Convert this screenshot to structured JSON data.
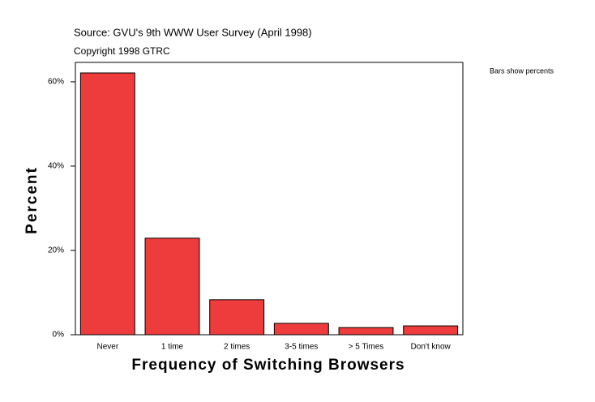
{
  "chart_data": {
    "type": "bar",
    "source": "Source: GVU's 9th WWW User Survey (April 1998)",
    "copyright": "Copyright 1998 GTRC",
    "note": "Bars show percents",
    "xlabel": "Frequency of Switching Browsers",
    "ylabel": "Percent",
    "categories": [
      "Never",
      "1 time",
      "2 times",
      "3-5 times",
      "> 5 Times",
      "Don't know"
    ],
    "values": [
      62.1,
      22.9,
      8.3,
      2.7,
      1.7,
      2.1
    ],
    "color": "#ee3b3b",
    "ylim": [
      0,
      64.6
    ],
    "yticks": [
      {
        "value": 0,
        "label": "0%"
      },
      {
        "value": 20,
        "label": "20%"
      },
      {
        "value": 40,
        "label": "40%"
      },
      {
        "value": 60,
        "label": "60%"
      }
    ],
    "grid": false
  }
}
